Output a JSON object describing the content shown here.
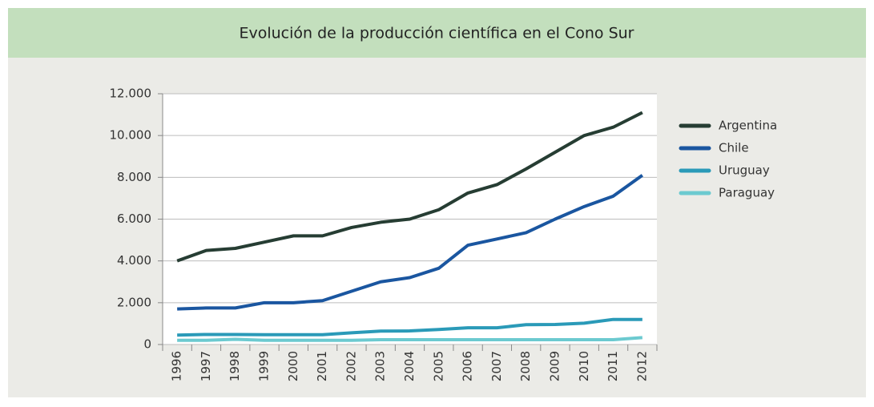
{
  "chart_data": {
    "type": "line",
    "title": "Evolución de la producción científica en el Cono Sur",
    "categories": [
      "1996",
      "1997",
      "1998",
      "1999",
      "2000",
      "2001",
      "2002",
      "2003",
      "2004",
      "2005",
      "2006",
      "2007",
      "2008",
      "2009",
      "2010",
      "2011",
      "2012"
    ],
    "series": [
      {
        "name": "Argentina",
        "color": "#263d33",
        "values": [
          4000,
          4500,
          4600,
          4900,
          5200,
          5200,
          5600,
          5850,
          6000,
          6450,
          7250,
          7650,
          8400,
          9200,
          10000,
          10400,
          11100
        ]
      },
      {
        "name": "Chile",
        "color": "#1a56a0",
        "values": [
          1700,
          1750,
          1750,
          2000,
          2000,
          2100,
          2550,
          3000,
          3200,
          3650,
          4750,
          5050,
          5350,
          6000,
          6600,
          7100,
          8100
        ]
      },
      {
        "name": "Uruguay",
        "color": "#2a9ab8",
        "values": [
          450,
          480,
          480,
          470,
          470,
          470,
          560,
          640,
          650,
          720,
          800,
          800,
          950,
          960,
          1020,
          1200,
          1200
        ]
      },
      {
        "name": "Paraguay",
        "color": "#6ccad0",
        "values": [
          200,
          200,
          250,
          200,
          200,
          200,
          200,
          230,
          230,
          230,
          230,
          230,
          230,
          230,
          230,
          230,
          330
        ]
      }
    ],
    "ylim": [
      0,
      12000
    ],
    "yticks": [
      0,
      {
        "value": 2000,
        "label": "2.000"
      },
      {
        "value": 4000,
        "label": "4.000"
      },
      {
        "value": 6000,
        "label": "6.000"
      },
      {
        "value": 8000,
        "label": "8.000"
      },
      {
        "value": 10000,
        "label": "10.000"
      },
      {
        "value": 12000,
        "label": "12.000"
      }
    ],
    "grid": true,
    "legend": "top-right"
  }
}
